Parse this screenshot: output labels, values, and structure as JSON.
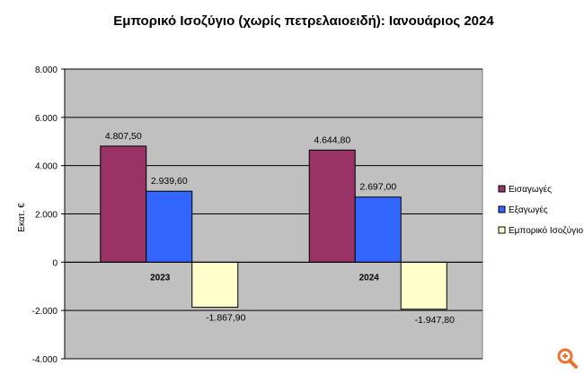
{
  "chart_data": {
    "type": "bar",
    "title": "Εμπορικό Ισοζύγιο (χωρίς πετρελαιοειδή): Ιανουάριος 2024",
    "ylabel": "Εκατ. €",
    "xlabel": "",
    "categories": [
      "2023",
      "2024"
    ],
    "ylim": [
      -4000,
      8000
    ],
    "yticks": [
      8000,
      6000,
      4000,
      2000,
      0,
      -2000,
      -4000
    ],
    "ytick_labels": [
      "8.000",
      "6.000",
      "4.000",
      "2.000",
      "0",
      "-2.000",
      "-4.000"
    ],
    "grid": true,
    "legend_position": "right",
    "series": [
      {
        "name": "Εισαγωγές",
        "values": [
          4807.5,
          4644.8
        ],
        "labels": [
          "4.807,50",
          "4.644,80"
        ],
        "color": "#993366"
      },
      {
        "name": "Εξαγωγές",
        "values": [
          2939.6,
          2697.0
        ],
        "labels": [
          "2.939,60",
          "2.697,00"
        ],
        "color": "#3366ff"
      },
      {
        "name": "Εμπορικό Ισοζύγιο",
        "values": [
          -1867.9,
          -1947.8
        ],
        "labels": [
          "-1.867,90",
          "-1.947,80"
        ],
        "color": "#ffffcc"
      }
    ],
    "plot_background": "#c0c0c0"
  },
  "icons": {
    "zoom": "zoom-in-icon",
    "accent": "#f07030"
  }
}
